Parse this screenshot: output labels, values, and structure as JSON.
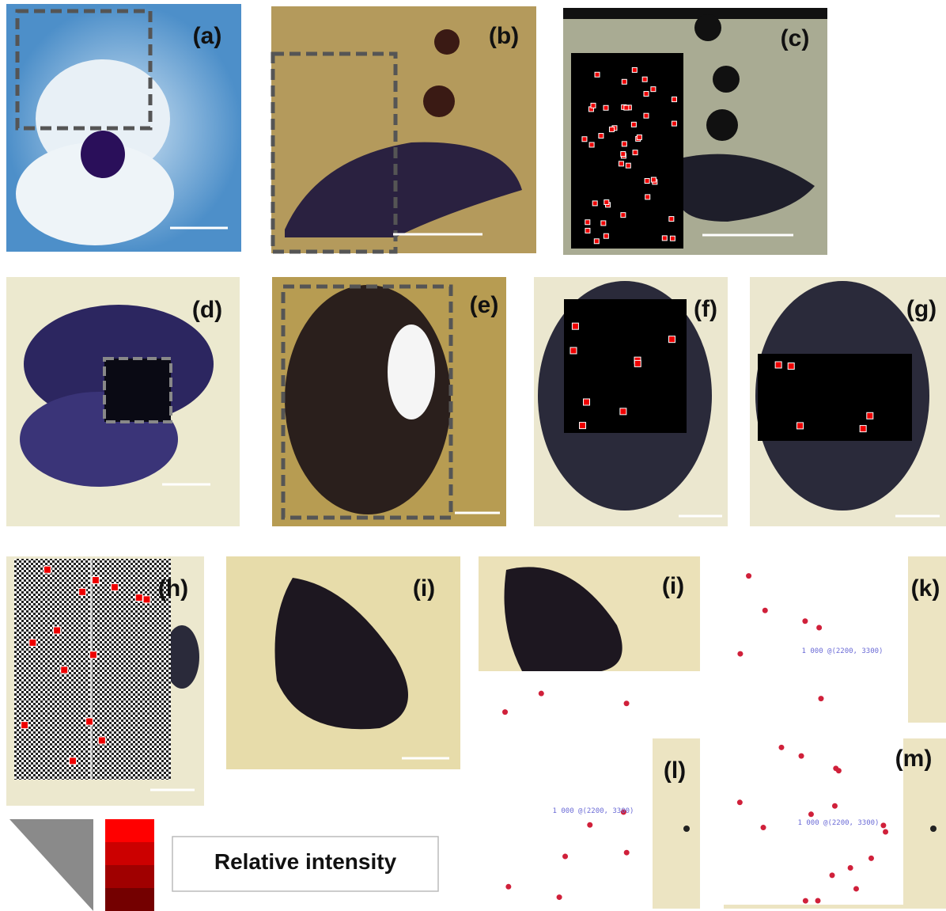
{
  "panels": [
    {
      "label": "(a)"
    },
    {
      "label": "(b)"
    },
    {
      "label": "(c)"
    },
    {
      "label": "(d)"
    },
    {
      "label": "(e)"
    },
    {
      "label": "(f)"
    },
    {
      "label": "(g)"
    },
    {
      "label": "(h)"
    },
    {
      "label": "(i)"
    },
    {
      "label": "(i)"
    },
    {
      "label": "(k)",
      "annotation": "1 000 @(2200, 3300)"
    },
    {
      "label": "(l)",
      "annotation": "1 000 @(2200, 3300)"
    },
    {
      "label": "(m)",
      "annotation": "1 000 @(2200, 3300)"
    }
  ],
  "legend": {
    "label": "Relative intensity"
  }
}
